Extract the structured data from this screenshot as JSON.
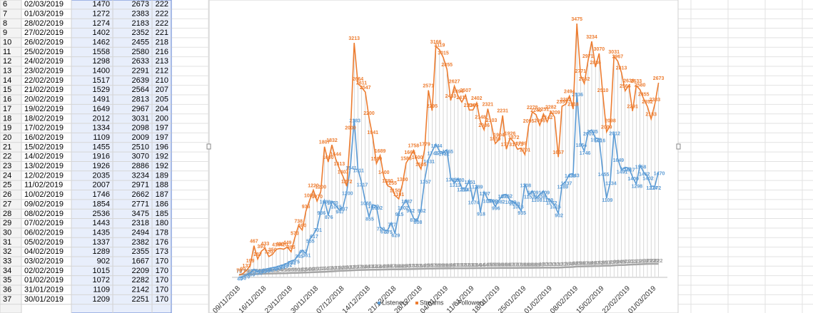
{
  "sheet": {
    "rows": [
      [
        6,
        "02/03/2019",
        1470,
        2673,
        222
      ],
      [
        7,
        "01/03/2019",
        1272,
        2383,
        222
      ],
      [
        8,
        "28/02/2019",
        1274,
        2183,
        222
      ],
      [
        9,
        "27/02/2019",
        1402,
        2352,
        221
      ],
      [
        10,
        "26/02/2019",
        1462,
        2455,
        218
      ],
      [
        11,
        "25/02/2019",
        1558,
        2580,
        216
      ],
      [
        12,
        "24/02/2019",
        1298,
        2633,
        213
      ],
      [
        13,
        "23/02/2019",
        1400,
        2291,
        212
      ],
      [
        14,
        "22/02/2019",
        1517,
        2639,
        210
      ],
      [
        15,
        "21/02/2019",
        1529,
        2564,
        207
      ],
      [
        16,
        "20/02/2019",
        1491,
        2813,
        205
      ],
      [
        17,
        "19/02/2019",
        1649,
        2967,
        204
      ],
      [
        18,
        "18/02/2019",
        2012,
        3031,
        200
      ],
      [
        19,
        "17/02/2019",
        1334,
        2098,
        197
      ],
      [
        20,
        "16/02/2019",
        1109,
        2009,
        197
      ],
      [
        21,
        "15/02/2019",
        1455,
        2510,
        196
      ],
      [
        22,
        "14/02/2019",
        1916,
        3070,
        192
      ],
      [
        23,
        "13/02/2019",
        1926,
        2886,
        192
      ],
      [
        24,
        "12/02/2019",
        2035,
        3234,
        189
      ],
      [
        25,
        "11/02/2019",
        2007,
        2971,
        188
      ],
      [
        26,
        "10/02/2019",
        1746,
        2662,
        187
      ],
      [
        27,
        "09/02/2019",
        1854,
        2771,
        186
      ],
      [
        28,
        "08/02/2019",
        2536,
        3475,
        185
      ],
      [
        29,
        "07/02/2019",
        1443,
        2318,
        180
      ],
      [
        30,
        "06/02/2019",
        1435,
        2494,
        178
      ],
      [
        31,
        "05/02/2019",
        1337,
        2382,
        176
      ],
      [
        32,
        "04/02/2019",
        1289,
        2355,
        173
      ],
      [
        33,
        "03/02/2019",
        902,
        1667,
        170
      ],
      [
        34,
        "02/02/2019",
        1015,
        2209,
        170
      ],
      [
        35,
        "01/02/2019",
        1072,
        2282,
        170
      ],
      [
        36,
        "31/01/2019",
        1109,
        2142,
        170
      ],
      [
        37,
        "30/01/2019",
        1209,
        2251,
        170
      ]
    ]
  },
  "chart_data": {
    "type": "line",
    "categories": [
      "09/11/2018",
      null,
      null,
      null,
      null,
      null,
      null,
      "16/11/2018",
      null,
      null,
      null,
      null,
      null,
      null,
      "23/11/2018",
      null,
      null,
      null,
      null,
      null,
      null,
      "30/11/2018",
      null,
      null,
      null,
      null,
      null,
      null,
      "07/12/2018",
      null,
      null,
      null,
      null,
      null,
      null,
      "14/12/2018",
      null,
      null,
      null,
      null,
      null,
      null,
      "21/12/2018",
      null,
      null,
      null,
      null,
      null,
      null,
      "28/12/2018",
      null,
      null,
      null,
      null,
      null,
      null,
      "04/01/2019",
      null,
      null,
      null,
      null,
      null,
      null,
      "11/01/2019",
      null,
      null,
      null,
      null,
      null,
      null,
      "18/01/2019",
      null,
      null,
      null,
      null,
      null,
      null,
      "25/01/2019",
      null,
      null,
      null,
      null,
      null,
      null,
      "01/02/2019",
      null,
      null,
      null,
      null,
      null,
      null,
      "08/02/2019",
      null,
      null,
      null,
      null,
      null,
      null,
      "15/02/2019",
      null,
      null,
      null,
      null,
      null,
      null,
      "22/02/2019",
      null,
      null,
      null,
      null,
      null,
      null,
      "01/03/2019",
      null
    ],
    "series": [
      {
        "name": "Listeners",
        "color": "#5b9bd5",
        "values": [
          40,
          50,
          70,
          100,
          150,
          120,
          140,
          150,
          160,
          170,
          180,
          195,
          210,
          232,
          261,
          275,
          345,
          407,
          361,
          555,
          617,
          701,
          936,
          1083,
          876,
          1070,
          1015,
          947,
          987,
          1200,
          1541,
          2183,
          1511,
          1317,
          1066,
          855,
          1022,
          1002,
          720,
          678,
          675,
          777,
          629,
          915,
          1002,
          1087,
          962,
          838,
          808,
          962,
          1357,
          1631,
          1743,
          1844,
          1745,
          1731,
          1765,
          1385,
          1313,
          1380,
          1250,
          1247,
          1351,
          1074,
          1289,
          918,
          1197,
          1094,
          1092,
          996,
          1082,
          1155,
          1162,
          1080,
          1059,
          1016,
          935,
          1308,
          1153,
          1209,
          1108,
          1158,
          1209,
          1109,
          1072,
          1015,
          902,
          1289,
          1337,
          1435,
          1443,
          2536,
          1854,
          1746,
          2007,
          2035,
          1926,
          1916,
          1455,
          1109,
          1334,
          2012,
          1649,
          1491,
          1529,
          1517,
          1400,
          1298,
          1558,
          1462,
          1402,
          1274,
          1272,
          1470
        ]
      },
      {
        "name": "Streams",
        "color": "#ed7d31",
        "values": [
          70,
          90,
          133,
          199,
          467,
          287,
          393,
          433,
          320,
          350,
          418,
          430,
          420,
          449,
          385,
          573,
          738,
          680,
          936,
          1083,
          1220,
          1070,
          1200,
          1807,
          1600,
          1832,
          1644,
          1513,
          1403,
          1272,
          2000,
          3213,
          2664,
          2611,
          2547,
          2200,
          1941,
          1580,
          1689,
          1400,
          1280,
          1255,
          1150,
          1101,
          1300,
          1588,
          1666,
          1758,
          1600,
          1505,
          1779,
          2571,
          2295,
          3166,
          3119,
          3015,
          2855,
          2433,
          2627,
          2494,
          2411,
          2507,
          2304,
          2305,
          2402,
          2148,
          2036,
          2321,
          2103,
          1850,
          1904,
          2231,
          1773,
          1926,
          1872,
          1773,
          1789,
          1701,
          2095,
          2278,
          2240,
          2096,
          2251,
          2142,
          2282,
          2209,
          1667,
          2355,
          2382,
          2494,
          2318,
          3475,
          2771,
          2662,
          2971,
          3234,
          2886,
          3070,
          2510,
          2009,
          2098,
          3031,
          2967,
          2813,
          2564,
          2639,
          2291,
          2633,
          2580,
          2455,
          2352,
          2183,
          2383,
          2673
        ]
      },
      {
        "name": "Followers",
        "color": "#a5a5a5",
        "values": [
          75,
          77,
          79,
          80,
          82,
          84,
          86,
          88,
          90,
          91,
          92,
          94,
          95,
          96,
          98,
          99,
          100,
          102,
          104,
          106,
          108,
          110,
          112,
          114,
          117,
          120,
          123,
          126,
          128,
          130,
          132,
          135,
          137,
          139,
          140,
          141,
          142,
          143,
          144,
          145,
          146,
          147,
          148,
          148,
          149,
          150,
          151,
          152,
          153,
          154,
          155,
          156,
          157,
          158,
          159,
          159,
          160,
          160,
          161,
          161,
          162,
          162,
          163,
          163,
          164,
          164,
          164,
          165,
          165,
          165,
          166,
          166,
          166,
          167,
          167,
          167,
          168,
          168,
          168,
          168,
          169,
          169,
          170,
          170,
          170,
          170,
          170,
          173,
          176,
          178,
          180,
          185,
          186,
          187,
          188,
          189,
          192,
          192,
          196,
          197,
          197,
          200,
          204,
          205,
          207,
          210,
          212,
          213,
          216,
          218,
          221,
          222,
          222,
          222
        ]
      }
    ]
  }
}
